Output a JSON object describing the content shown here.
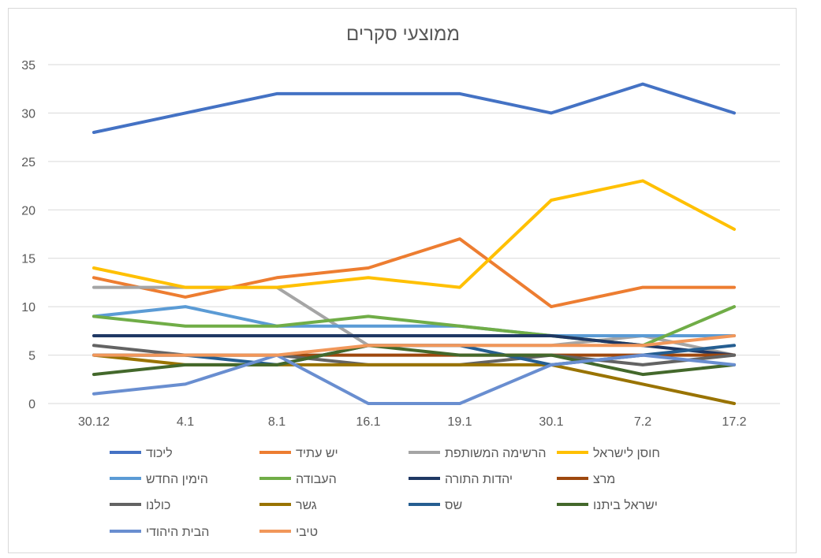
{
  "chart_data": {
    "type": "line",
    "title": "ממוצעי סקרים",
    "xlabel": "",
    "ylabel": "",
    "categories": [
      "30.12",
      "4.1",
      "8.1",
      "16.1",
      "19.1",
      "30.1",
      "7.2",
      "17.2"
    ],
    "ylim": [
      0,
      35
    ],
    "yticks": [
      0,
      5,
      10,
      15,
      20,
      25,
      30,
      35
    ],
    "grid": true,
    "legend_position": "bottom",
    "series": [
      {
        "name": "ליכוד",
        "color": "#4472C4",
        "values": [
          28,
          30,
          32,
          32,
          32,
          30,
          33,
          30
        ]
      },
      {
        "name": "יש עתיד",
        "color": "#ED7D31",
        "values": [
          13,
          11,
          13,
          14,
          17,
          10,
          12,
          12
        ]
      },
      {
        "name": "הרשימה המשותפת",
        "color": "#A5A5A5",
        "values": [
          12,
          12,
          12,
          6,
          6,
          6,
          7,
          5
        ]
      },
      {
        "name": "חוסן לישראל",
        "color": "#FFC000",
        "values": [
          14,
          12,
          12,
          13,
          12,
          21,
          23,
          18
        ]
      },
      {
        "name": "הימין החדש",
        "color": "#5B9BD5",
        "values": [
          9,
          10,
          8,
          8,
          8,
          7,
          7,
          7
        ]
      },
      {
        "name": "העבודה",
        "color": "#70AD47",
        "values": [
          9,
          8,
          8,
          9,
          8,
          7,
          6,
          10
        ]
      },
      {
        "name": "יהדות התורה",
        "color": "#1F3864",
        "values": [
          7,
          7,
          7,
          7,
          7,
          7,
          6,
          5
        ]
      },
      {
        "name": "מרצ",
        "color": "#9E480E",
        "values": [
          5,
          5,
          5,
          5,
          5,
          5,
          5,
          5
        ]
      },
      {
        "name": "כולנו",
        "color": "#636363",
        "values": [
          6,
          5,
          5,
          4,
          4,
          5,
          4,
          5
        ]
      },
      {
        "name": "גשר",
        "color": "#997300",
        "values": [
          5,
          4,
          4,
          4,
          4,
          4,
          2,
          0
        ]
      },
      {
        "name": "שס",
        "color": "#255E91",
        "values": [
          5,
          5,
          4,
          6,
          6,
          4,
          5,
          6
        ]
      },
      {
        "name": "ישראל ביתנו",
        "color": "#43682B",
        "values": [
          3,
          4,
          4,
          6,
          5,
          5,
          3,
          4
        ]
      },
      {
        "name": "הבית היהודי",
        "color": "#698ED0",
        "values": [
          1,
          2,
          5,
          0,
          0,
          4,
          5,
          4
        ]
      },
      {
        "name": "טיבי",
        "color": "#F1975A",
        "values": [
          5,
          5,
          5,
          6,
          6,
          6,
          6,
          7
        ]
      }
    ]
  }
}
